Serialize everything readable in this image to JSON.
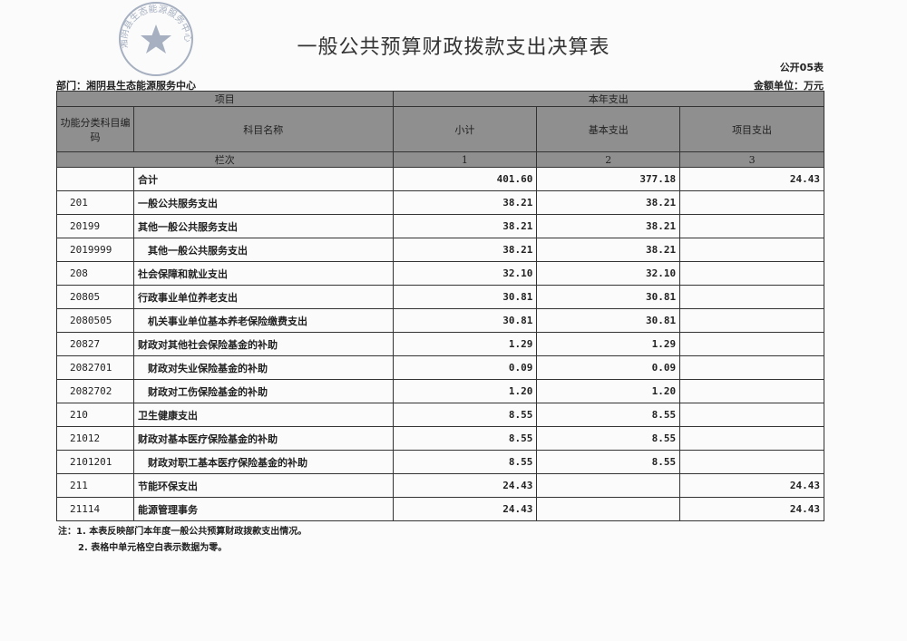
{
  "title": "一般公共预算财政拨款支出决算表",
  "form_no": "公开05表",
  "department": "部门：湘阴县生态能源服务中心",
  "unit": "金额单位：万元",
  "stamp_text": "湘阴县生态能源服务中心",
  "header": {
    "item": "项目",
    "this_year": "本年支出",
    "code": "功能分类科目编码",
    "name": "科目名称",
    "subtotal": "小计",
    "basic": "基本支出",
    "project": "项目支出",
    "col_index": "栏次",
    "idx1": "1",
    "idx2": "2",
    "idx3": "3"
  },
  "rows": [
    {
      "code": "",
      "name": "合计",
      "subtotal": "401.60",
      "basic": "377.18",
      "project": "24.43"
    },
    {
      "code": "201",
      "name": "一般公共服务支出",
      "subtotal": "38.21",
      "basic": "38.21",
      "project": ""
    },
    {
      "code": "20199",
      "name": "其他一般公共服务支出",
      "subtotal": "38.21",
      "basic": "38.21",
      "project": ""
    },
    {
      "code": "2019999",
      "name": "　其他一般公共服务支出",
      "subtotal": "38.21",
      "basic": "38.21",
      "project": ""
    },
    {
      "code": "208",
      "name": "社会保障和就业支出",
      "subtotal": "32.10",
      "basic": "32.10",
      "project": ""
    },
    {
      "code": "20805",
      "name": "行政事业单位养老支出",
      "subtotal": "30.81",
      "basic": "30.81",
      "project": ""
    },
    {
      "code": "2080505",
      "name": "　机关事业单位基本养老保险缴费支出",
      "subtotal": "30.81",
      "basic": "30.81",
      "project": ""
    },
    {
      "code": "20827",
      "name": "财政对其他社会保险基金的补助",
      "subtotal": "1.29",
      "basic": "1.29",
      "project": ""
    },
    {
      "code": "2082701",
      "name": "　财政对失业保险基金的补助",
      "subtotal": "0.09",
      "basic": "0.09",
      "project": ""
    },
    {
      "code": "2082702",
      "name": "　财政对工伤保险基金的补助",
      "subtotal": "1.20",
      "basic": "1.20",
      "project": ""
    },
    {
      "code": "210",
      "name": "卫生健康支出",
      "subtotal": "8.55",
      "basic": "8.55",
      "project": ""
    },
    {
      "code": "21012",
      "name": "财政对基本医疗保险基金的补助",
      "subtotal": "8.55",
      "basic": "8.55",
      "project": ""
    },
    {
      "code": "2101201",
      "name": "　财政对职工基本医疗保险基金的补助",
      "subtotal": "8.55",
      "basic": "8.55",
      "project": ""
    },
    {
      "code": "211",
      "name": "节能环保支出",
      "subtotal": "24.43",
      "basic": "",
      "project": "24.43"
    },
    {
      "code": "21114",
      "name": "能源管理事务",
      "subtotal": "24.43",
      "basic": "",
      "project": "24.43"
    }
  ],
  "notes": [
    "注：1. 本表反映部门本年度一般公共预算财政拨款支出情况。",
    "2. 表格中单元格空白表示数据为零。"
  ]
}
